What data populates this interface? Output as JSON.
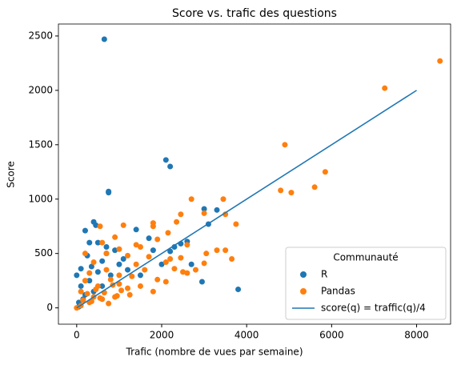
{
  "chart_data": {
    "type": "scatter",
    "title": "Score vs. trafic des questions",
    "xlabel": "Trafic (nombre de vues par semaine)",
    "ylabel": "Score",
    "xlim": [
      -430,
      8800
    ],
    "xticks": [
      0,
      2000,
      4000,
      6000,
      8000
    ],
    "ylim": [
      -150,
      2610
    ],
    "yticks": [
      0,
      500,
      1000,
      1500,
      2000,
      2500
    ],
    "legend_title": "Communauté",
    "legend": "lower right",
    "series": [
      {
        "name": "R",
        "type": "scatter",
        "color": "#1f77b4",
        "x": [
          650,
          2100,
          2200,
          750,
          750,
          3300,
          3000,
          3800,
          2950,
          2700,
          2300,
          2450,
          400,
          450,
          200,
          1400,
          1800,
          2200,
          2600,
          300,
          700,
          900,
          600,
          1000,
          500,
          300,
          100,
          800,
          1200,
          200,
          50,
          150,
          400,
          600,
          1500,
          2000,
          3100,
          700,
          1100,
          250,
          350,
          500,
          1700,
          50,
          0,
          100
        ],
        "values": [
          2470,
          1360,
          1300,
          1070,
          1060,
          900,
          910,
          170,
          240,
          400,
          560,
          590,
          790,
          760,
          710,
          720,
          530,
          520,
          610,
          600,
          560,
          530,
          430,
          400,
          330,
          250,
          200,
          300,
          350,
          120,
          50,
          80,
          150,
          200,
          300,
          400,
          770,
          500,
          450,
          480,
          380,
          600,
          640,
          10,
          300,
          360
        ]
      },
      {
        "name": "Pandas",
        "type": "scatter",
        "color": "#ff7f0e",
        "x": [
          8550,
          7250,
          4900,
          5850,
          5600,
          4800,
          5050,
          3450,
          2700,
          3000,
          3500,
          3750,
          2450,
          2350,
          1800,
          1800,
          2150,
          1900,
          2600,
          3500,
          3300,
          3050,
          3650,
          2800,
          2600,
          2500,
          3000,
          2450,
          2200,
          2100,
          1500,
          1400,
          1700,
          1000,
          1200,
          550,
          1100,
          900,
          600,
          700,
          400,
          300,
          200,
          100,
          500,
          800,
          1300,
          1600,
          1900,
          2100,
          2300,
          900,
          1200,
          600,
          300,
          100,
          0,
          400,
          1000,
          1500,
          1800,
          700,
          200,
          1000,
          1400,
          250,
          450,
          650,
          850,
          1050,
          1250,
          350,
          550,
          750,
          950,
          150
        ],
        "values": [
          2270,
          2020,
          1500,
          1250,
          1110,
          1080,
          1060,
          1000,
          1000,
          870,
          860,
          770,
          860,
          790,
          780,
          750,
          690,
          630,
          580,
          530,
          530,
          500,
          450,
          350,
          320,
          330,
          410,
          460,
          450,
          420,
          560,
          580,
          470,
          540,
          480,
          750,
          760,
          650,
          600,
          500,
          420,
          320,
          250,
          150,
          200,
          260,
          290,
          350,
          260,
          240,
          360,
          100,
          180,
          80,
          50,
          20,
          0,
          100,
          300,
          200,
          150,
          350,
          500,
          220,
          400,
          130,
          170,
          140,
          210,
          160,
          120,
          60,
          90,
          40,
          110,
          70
        ]
      },
      {
        "name": "score(q) = traffic(q)/4",
        "type": "line",
        "color": "#1f77b4",
        "x": [
          0,
          8000
        ],
        "values": [
          0,
          2000
        ]
      }
    ]
  }
}
